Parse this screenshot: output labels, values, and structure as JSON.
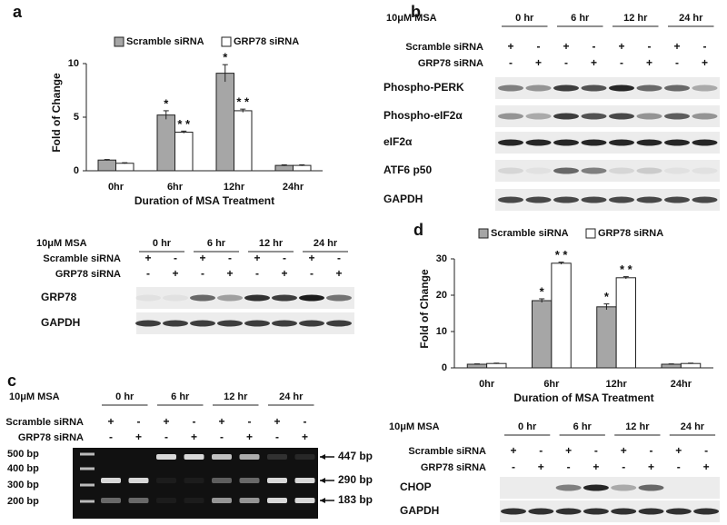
{
  "panel_labels": [
    "a",
    "b",
    "c",
    "d"
  ],
  "chart_data": [
    {
      "type": "bar",
      "y_label": "Fold of Change",
      "x_label": "Duration of MSA Treatment",
      "categories": [
        "0hr",
        "6hr",
        "12hr",
        "24hr"
      ],
      "ylim": [
        0,
        10
      ],
      "yticks": [
        0,
        5,
        10
      ],
      "series": [
        {
          "name": "Scramble siRNA",
          "color": "#a6a6a6",
          "values": [
            1.0,
            5.2,
            9.1,
            0.5
          ],
          "errors": [
            0.05,
            0.4,
            0.8,
            0.05
          ],
          "annotations": [
            null,
            "*",
            "*",
            null
          ]
        },
        {
          "name": "GRP78 siRNA",
          "color": "#ffffff",
          "values": [
            0.7,
            3.6,
            5.6,
            0.5
          ],
          "errors": [
            0.05,
            0.1,
            0.15,
            0.05
          ],
          "annotations": [
            null,
            "* *",
            "* *",
            null
          ]
        }
      ]
    },
    {
      "type": "bar",
      "y_label": "Fold of Change",
      "x_label": "Duration of MSA Treatment",
      "categories": [
        "0hr",
        "6hr",
        "12hr",
        "24hr"
      ],
      "ylim": [
        0,
        30
      ],
      "yticks": [
        0,
        10,
        20,
        30
      ],
      "series": [
        {
          "name": "Scramble siRNA",
          "color": "#a6a6a6",
          "values": [
            1.0,
            18.5,
            16.8,
            1.0
          ],
          "errors": [
            0.1,
            0.5,
            0.8,
            0.1
          ],
          "annotations": [
            null,
            "*",
            "*",
            null
          ]
        },
        {
          "name": "GRP78 siRNA",
          "color": "#ffffff",
          "values": [
            1.2,
            28.8,
            24.8,
            1.2
          ],
          "errors": [
            0.1,
            0.3,
            0.3,
            0.1
          ],
          "annotations": [
            null,
            "* *",
            "* *",
            null
          ]
        }
      ]
    }
  ],
  "blots": [
    {
      "treatment": "10μM MSA",
      "times": [
        "0 hr",
        "6 hr",
        "12 hr",
        "24 hr"
      ],
      "conditions": [
        {
          "label": "Scramble siRNA",
          "signs": [
            "+",
            "-",
            "+",
            "-",
            "+",
            "-",
            "+",
            "-"
          ]
        },
        {
          "label": "GRP78 siRNA",
          "signs": [
            "-",
            "+",
            "-",
            "+",
            "-",
            "+",
            "-",
            "+"
          ]
        }
      ],
      "bands": [
        "GRP78",
        "GAPDH"
      ]
    },
    {
      "treatment": "10μM MSA",
      "times": [
        "0 hr",
        "6 hr",
        "12 hr",
        "24 hr"
      ],
      "conditions": [
        {
          "label": "Scramble siRNA",
          "signs": [
            "+",
            "-",
            "+",
            "-",
            "+",
            "-",
            "+",
            "-"
          ]
        },
        {
          "label": "GRP78 siRNA",
          "signs": [
            "-",
            "+",
            "-",
            "+",
            "-",
            "+",
            "-",
            "+"
          ]
        }
      ],
      "bands": [
        "Phospho-PERK",
        "Phospho-eIF2α",
        "eIF2α",
        "ATF6 p50",
        "GAPDH"
      ]
    },
    {
      "treatment": "10μM MSA",
      "times": [
        "0 hr",
        "6 hr",
        "12 hr",
        "24 hr"
      ],
      "conditions": [
        {
          "label": "Scramble siRNA",
          "signs": [
            "+",
            "-",
            "+",
            "-",
            "+",
            "-",
            "+",
            "-"
          ]
        },
        {
          "label": "GRP78 siRNA",
          "signs": [
            "-",
            "+",
            "-",
            "+",
            "-",
            "+",
            "-",
            "+"
          ]
        }
      ],
      "ladder": [
        "500 bp",
        "400 bp",
        "300 bp",
        "200 bp"
      ],
      "products": [
        "447 bp",
        "290 bp",
        "183 bp"
      ]
    },
    {
      "treatment": "10μM MSA",
      "times": [
        "0 hr",
        "6 hr",
        "12 hr",
        "24 hr"
      ],
      "conditions": [
        {
          "label": "Scramble siRNA",
          "signs": [
            "+",
            "-",
            "+",
            "-",
            "+",
            "-",
            "+",
            "-"
          ]
        },
        {
          "label": "GRP78 siRNA",
          "signs": [
            "-",
            "+",
            "-",
            "+",
            "-",
            "+",
            "-",
            "+"
          ]
        }
      ],
      "bands": [
        "CHOP",
        "GAPDH"
      ]
    }
  ]
}
